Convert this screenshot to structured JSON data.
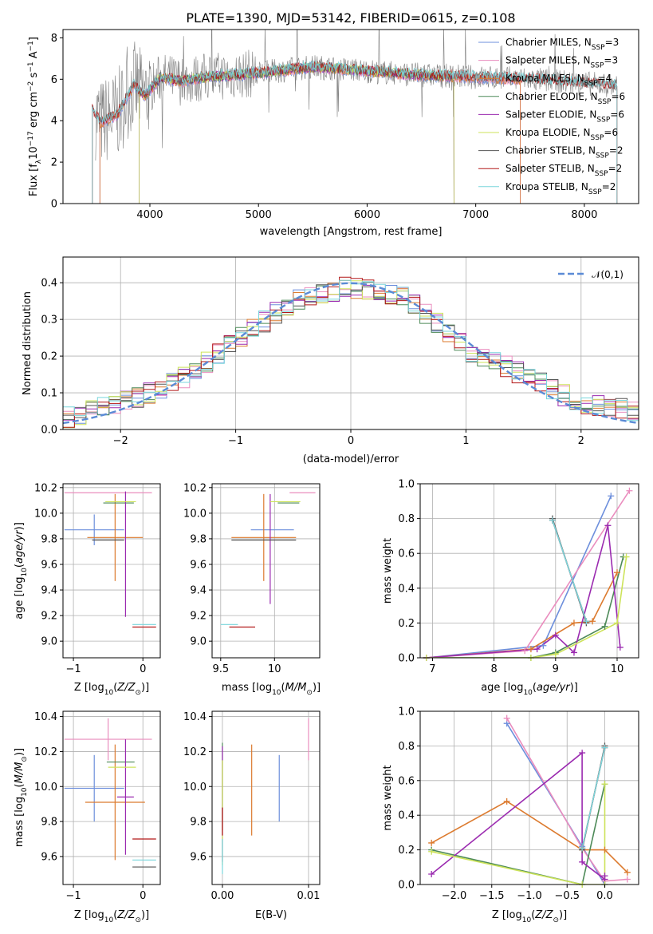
{
  "colors": {
    "Chabrier MILES": "#6d8fdc",
    "Salpeter MILES": "#ea8dbe",
    "Kroupa MILES": "#dc7a2e",
    "Chabrier ELODIE": "#4d8a58",
    "Salpeter ELODIE": "#9b2bb0",
    "Kroupa ELODIE": "#cde35a",
    "Chabrier STELIB": "#555555",
    "Salpeter STELIB": "#b21818",
    "Kroupa STELIB": "#79d6dc"
  },
  "chart_data": [
    {
      "id": "spectrum",
      "type": "line",
      "title": "PLATE=1390, MJD=53142, FIBERID=0615, z=0.108",
      "xlabel": "wavelength [Angstrom, rest frame]",
      "ylabel": "Flux [f_λ 10^-17 erg cm^-2 s^-1 A^-1]",
      "xlim": [
        3200,
        8500
      ],
      "ylim": [
        0,
        8.4
      ],
      "xticks": [
        4000,
        5000,
        6000,
        7000,
        8000
      ],
      "yticks": [
        0,
        2,
        4,
        6,
        8
      ],
      "legend_position": "top-right",
      "legend": [
        {
          "model": "Chabrier MILES",
          "label": "Chabrier MILES, N_SSP=3"
        },
        {
          "model": "Salpeter MILES",
          "label": "Salpeter MILES, N_SSP=3"
        },
        {
          "model": "Kroupa MILES",
          "label": "Kroupa MILES, N_SSP=4"
        },
        {
          "model": "Chabrier ELODIE",
          "label": "Chabrier ELODIE, N_SSP=6"
        },
        {
          "model": "Salpeter ELODIE",
          "label": "Salpeter ELODIE, N_SSP=6"
        },
        {
          "model": "Kroupa ELODIE",
          "label": "Kroupa ELODIE, N_SSP=6"
        },
        {
          "model": "Chabrier STELIB",
          "label": "Chabrier STELIB, N_SSP=2"
        },
        {
          "model": "Salpeter STELIB",
          "label": "Salpeter STELIB, N_SSP=2"
        },
        {
          "model": "Kroupa STELIB",
          "label": "Kroupa STELIB, N_SSP=2"
        }
      ],
      "model_continuum": {
        "x": [
          3470,
          3550,
          3700,
          3850,
          3950,
          4100,
          4300,
          4500,
          5000,
          5500,
          6000,
          6500,
          7000,
          7500,
          8000,
          8300
        ],
        "y": [
          4.5,
          3.9,
          4.3,
          5.7,
          5.2,
          6.1,
          5.9,
          6.1,
          6.3,
          6.6,
          6.4,
          6.2,
          6.1,
          6.0,
          5.8,
          5.7
        ]
      },
      "model_ranges": {
        "MILES": [
          3540,
          7410
        ],
        "ELODIE": [
          3900,
          6800
        ],
        "STELIB": [
          3470,
          8300
        ]
      },
      "data_range": [
        3500,
        8300
      ]
    },
    {
      "id": "residuals",
      "type": "step-histogram",
      "xlabel": "(data-model)/error",
      "ylabel": "Normed distribution",
      "xlim": [
        -2.5,
        2.5
      ],
      "ylim": [
        0,
        0.47
      ],
      "xticks": [
        -2,
        -1,
        0,
        1,
        2
      ],
      "yticks": [
        0.0,
        0.1,
        0.2,
        0.3,
        0.4
      ],
      "bin_width": 0.1,
      "legend": [
        "𝒩(0,1)"
      ],
      "legend_position": "top-right",
      "reference_curve": "gaussian mean 0 sigma 1",
      "approx_envelope": {
        "x": [
          -2.5,
          -2.0,
          -1.5,
          -1.0,
          -0.5,
          0.0,
          0.5,
          1.0,
          1.5,
          2.0,
          2.5
        ],
        "y": [
          0.03,
          0.07,
          0.13,
          0.24,
          0.35,
          0.39,
          0.36,
          0.22,
          0.15,
          0.07,
          0.05
        ]
      }
    },
    {
      "id": "age-vs-Z",
      "type": "errorbar",
      "xlabel": "Z [log10(Z/Z⊙)]",
      "ylabel": "age [log10(age/yr)]",
      "xlim": [
        -1.15,
        0.25
      ],
      "ylim": [
        8.87,
        10.23
      ],
      "xticks": [
        -1,
        0
      ],
      "yticks": [
        9.0,
        9.2,
        9.4,
        9.6,
        9.8,
        10.0,
        10.2
      ],
      "points": [
        {
          "model": "Chabrier MILES",
          "x": -0.7,
          "xerr": 0.43,
          "y": 9.87,
          "yerr": 0.12
        },
        {
          "model": "Salpeter MILES",
          "x": -0.5,
          "xerr": 0.63,
          "y": 10.16,
          "yerr": 0.0
        },
        {
          "model": "Kroupa MILES",
          "x": -0.4,
          "xerr": 0.4,
          "y": 9.81,
          "yerr": 0.34
        },
        {
          "model": "Chabrier ELODIE",
          "x": -0.35,
          "xerr": 0.22,
          "y": 10.08,
          "yerr": 0.0
        },
        {
          "model": "Salpeter ELODIE",
          "x": -0.25,
          "xerr": 0.0,
          "y": 9.68,
          "yerr": 0.49
        },
        {
          "model": "Kroupa ELODIE",
          "x": -0.32,
          "xerr": 0.22,
          "y": 10.09,
          "yerr": 0.0
        },
        {
          "model": "Chabrier STELIB",
          "x": -0.5,
          "xerr": 0.23,
          "y": 9.79,
          "yerr": 0.0
        },
        {
          "model": "Salpeter STELIB",
          "x": 0.02,
          "xerr": 0.17,
          "y": 9.11,
          "yerr": 0.0
        },
        {
          "model": "Kroupa STELIB",
          "x": 0.02,
          "xerr": 0.17,
          "y": 9.13,
          "yerr": 0.0
        }
      ]
    },
    {
      "id": "age-vs-mass",
      "type": "errorbar",
      "xlabel": "mass [log10(M/M⊙)]",
      "ylabel": "",
      "xlim": [
        9.42,
        10.42
      ],
      "ylim": [
        8.87,
        10.23
      ],
      "xticks": [
        9.5,
        10.0
      ],
      "yticks": [
        9.0,
        9.2,
        9.4,
        9.6,
        9.8,
        10.0,
        10.2
      ],
      "points": [
        {
          "model": "Chabrier MILES",
          "x": 9.98,
          "xerr": 0.2,
          "y": 9.87,
          "yerr": 0.0
        },
        {
          "model": "Salpeter MILES",
          "x": 10.26,
          "xerr": 0.12,
          "y": 10.16,
          "yerr": 0.0
        },
        {
          "model": "Kroupa MILES",
          "x": 9.9,
          "xerr": 0.3,
          "y": 9.81,
          "yerr": 0.34
        },
        {
          "model": "Chabrier ELODIE",
          "x": 10.13,
          "xerr": 0.1,
          "y": 10.08,
          "yerr": 0.0
        },
        {
          "model": "Salpeter ELODIE",
          "x": 9.96,
          "xerr": 0.0,
          "y": 9.72,
          "yerr": 0.43
        },
        {
          "model": "Kroupa ELODIE",
          "x": 10.1,
          "xerr": 0.14,
          "y": 10.09,
          "yerr": 0.0
        },
        {
          "model": "Chabrier STELIB",
          "x": 9.9,
          "xerr": 0.3,
          "y": 9.79,
          "yerr": 0.0
        },
        {
          "model": "Salpeter STELIB",
          "x": 9.7,
          "xerr": 0.12,
          "y": 9.11,
          "yerr": 0.0
        },
        {
          "model": "Kroupa STELIB",
          "x": 9.58,
          "xerr": 0.08,
          "y": 9.13,
          "yerr": 0.0
        }
      ]
    },
    {
      "id": "weight-vs-age",
      "type": "line",
      "xlabel": "age [log10(age/yr)]",
      "ylabel": "mass weight",
      "xlim": [
        6.8,
        10.35
      ],
      "ylim": [
        0,
        1.0
      ],
      "xticks": [
        7,
        8,
        9,
        10
      ],
      "yticks": [
        0.0,
        0.2,
        0.4,
        0.6,
        0.8,
        1.0
      ],
      "series": [
        {
          "model": "Chabrier MILES",
          "x": [
            6.9,
            8.8,
            9.9
          ],
          "y": [
            0.0,
            0.07,
            0.93
          ]
        },
        {
          "model": "Salpeter MILES",
          "x": [
            6.9,
            8.5,
            10.2
          ],
          "y": [
            0.0,
            0.04,
            0.96
          ]
        },
        {
          "model": "Kroupa MILES",
          "x": [
            6.9,
            8.6,
            9.3,
            9.6,
            10.0
          ],
          "y": [
            0.0,
            0.05,
            0.2,
            0.21,
            0.49
          ]
        },
        {
          "model": "Chabrier ELODIE",
          "x": [
            6.9,
            8.6,
            9.0,
            9.8,
            10.1
          ],
          "y": [
            0.0,
            0.0,
            0.03,
            0.18,
            0.58
          ]
        },
        {
          "model": "Salpeter ELODIE",
          "x": [
            6.9,
            8.7,
            9.0,
            9.3,
            9.85,
            10.05
          ],
          "y": [
            0.0,
            0.05,
            0.13,
            0.03,
            0.76,
            0.06
          ]
        },
        {
          "model": "Kroupa ELODIE",
          "x": [
            6.9,
            8.6,
            9.0,
            10.0,
            10.15
          ],
          "y": [
            0.0,
            0.0,
            0.02,
            0.2,
            0.58
          ]
        },
        {
          "model": "Chabrier STELIB",
          "x": [
            8.95,
            9.5
          ],
          "y": [
            0.8,
            0.2
          ]
        },
        {
          "model": "Salpeter STELIB",
          "x": [
            8.95,
            9.5
          ],
          "y": [
            0.79,
            0.21
          ]
        },
        {
          "model": "Kroupa STELIB",
          "x": [
            8.95,
            9.5
          ],
          "y": [
            0.79,
            0.21
          ]
        }
      ]
    },
    {
      "id": "mass-vs-Z",
      "type": "errorbar",
      "xlabel": "Z [log10(Z/Z⊙)]",
      "ylabel": "mass [log10(M/M⊙)]",
      "xlim": [
        -1.15,
        0.25
      ],
      "ylim": [
        9.44,
        10.43
      ],
      "xticks": [
        -1,
        0
      ],
      "yticks": [
        9.6,
        9.8,
        10.0,
        10.2,
        10.4
      ],
      "points": [
        {
          "model": "Chabrier MILES",
          "x": -0.7,
          "xerr": 0.43,
          "y": 9.99,
          "yerr": 0.19
        },
        {
          "model": "Salpeter MILES",
          "x": -0.5,
          "xerr": 0.63,
          "y": 10.27,
          "yerr": 0.12
        },
        {
          "model": "Kroupa MILES",
          "x": -0.4,
          "xerr": 0.43,
          "y": 9.91,
          "yerr": 0.33
        },
        {
          "model": "Chabrier ELODIE",
          "x": -0.32,
          "xerr": 0.2,
          "y": 10.14,
          "yerr": 0.0
        },
        {
          "model": "Salpeter ELODIE",
          "x": -0.25,
          "xerr": 0.12,
          "y": 9.94,
          "yerr": 0.33
        },
        {
          "model": "Kroupa ELODIE",
          "x": -0.3,
          "xerr": 0.2,
          "y": 10.11,
          "yerr": 0.0
        },
        {
          "model": "Chabrier STELIB",
          "x": 0.02,
          "xerr": 0.17,
          "y": 9.54,
          "yerr": 0.0
        },
        {
          "model": "Salpeter STELIB",
          "x": 0.02,
          "xerr": 0.17,
          "y": 9.7,
          "yerr": 0.0
        },
        {
          "model": "Kroupa STELIB",
          "x": 0.02,
          "xerr": 0.17,
          "y": 9.58,
          "yerr": 0.0
        }
      ]
    },
    {
      "id": "mass-vs-ebv",
      "type": "errorbar",
      "xlabel": "E(B-V)",
      "ylabel": "",
      "xlim": [
        -0.0012,
        0.0113
      ],
      "ylim": [
        9.44,
        10.43
      ],
      "xticks": [
        0.0,
        0.01
      ],
      "xticklabels": [
        "0.00",
        "0.01"
      ],
      "yticks": [
        9.6,
        9.8,
        10.0,
        10.2,
        10.4
      ],
      "points": [
        {
          "model": "Chabrier MILES",
          "x": 0.0066,
          "xerr": 0.0,
          "y": 9.99,
          "yerr": 0.19
        },
        {
          "model": "Salpeter MILES",
          "x": 0.01,
          "xerr": 0.0,
          "y": 10.27,
          "yerr": 0.12
        },
        {
          "model": "Kroupa MILES",
          "x": 0.0034,
          "xerr": 0.0,
          "y": 9.98,
          "yerr": 0.26
        },
        {
          "model": "Chabrier ELODIE",
          "x": 0.0,
          "xerr": 0.0,
          "y": 10.0,
          "yerr": 0.25
        },
        {
          "model": "Salpeter ELODIE",
          "x": 0.0,
          "xerr": 0.0,
          "y": 9.9,
          "yerr": 0.33
        },
        {
          "model": "Kroupa ELODIE",
          "x": 0.0,
          "xerr": 0.0,
          "y": 9.85,
          "yerr": 0.3
        },
        {
          "model": "Chabrier STELIB",
          "x": 0.0,
          "xerr": 0.0,
          "y": 9.54,
          "yerr": 0.0
        },
        {
          "model": "Salpeter STELIB",
          "x": 0.0,
          "xerr": 0.0,
          "y": 9.8,
          "yerr": 0.08
        },
        {
          "model": "Kroupa STELIB",
          "x": 0.0,
          "xerr": 0.0,
          "y": 9.6,
          "yerr": 0.1
        }
      ]
    },
    {
      "id": "weight-vs-Z",
      "type": "line",
      "xlabel": "Z [log10(Z/Z⊙)]",
      "ylabel": "mass weight",
      "xlim": [
        -2.45,
        0.45
      ],
      "ylim": [
        0,
        1.0
      ],
      "xticks": [
        -2.0,
        -1.5,
        -1.0,
        -0.5,
        0.0
      ],
      "xticklabels": [
        "−2.0",
        "−1.5",
        "−1.0",
        "−0.5",
        "0.0"
      ],
      "yticks": [
        0.0,
        0.2,
        0.4,
        0.6,
        0.8,
        1.0
      ],
      "series": [
        {
          "model": "Chabrier MILES",
          "x": [
            -1.3,
            -0.3,
            0.0
          ],
          "y": [
            0.93,
            0.22,
            0.0
          ]
        },
        {
          "model": "Salpeter MILES",
          "x": [
            -1.3,
            -0.3,
            0.0,
            0.3
          ],
          "y": [
            0.96,
            0.21,
            0.02,
            0.03
          ]
        },
        {
          "model": "Kroupa MILES",
          "x": [
            -2.3,
            -1.3,
            -0.3,
            0.0,
            0.3
          ],
          "y": [
            0.24,
            0.48,
            0.2,
            0.2,
            0.07
          ]
        },
        {
          "model": "Chabrier ELODIE",
          "x": [
            -2.3,
            -0.3,
            0.0
          ],
          "y": [
            0.2,
            0.0,
            0.58
          ]
        },
        {
          "model": "Salpeter ELODIE",
          "x": [
            -2.3,
            -0.3,
            -0.3,
            0.0,
            0.0
          ],
          "y": [
            0.06,
            0.76,
            0.13,
            0.03,
            0.05
          ]
        },
        {
          "model": "Kroupa ELODIE",
          "x": [
            -2.3,
            -0.3,
            0.0,
            0.0
          ],
          "y": [
            0.19,
            0.0,
            0.0,
            0.58
          ]
        },
        {
          "model": "Chabrier STELIB",
          "x": [
            -0.3,
            0.0
          ],
          "y": [
            0.2,
            0.8
          ]
        },
        {
          "model": "Salpeter STELIB",
          "x": [
            -0.3,
            0.0
          ],
          "y": [
            0.21,
            0.79
          ]
        },
        {
          "model": "Kroupa STELIB",
          "x": [
            -0.3,
            0.0
          ],
          "y": [
            0.21,
            0.79
          ]
        }
      ]
    }
  ]
}
